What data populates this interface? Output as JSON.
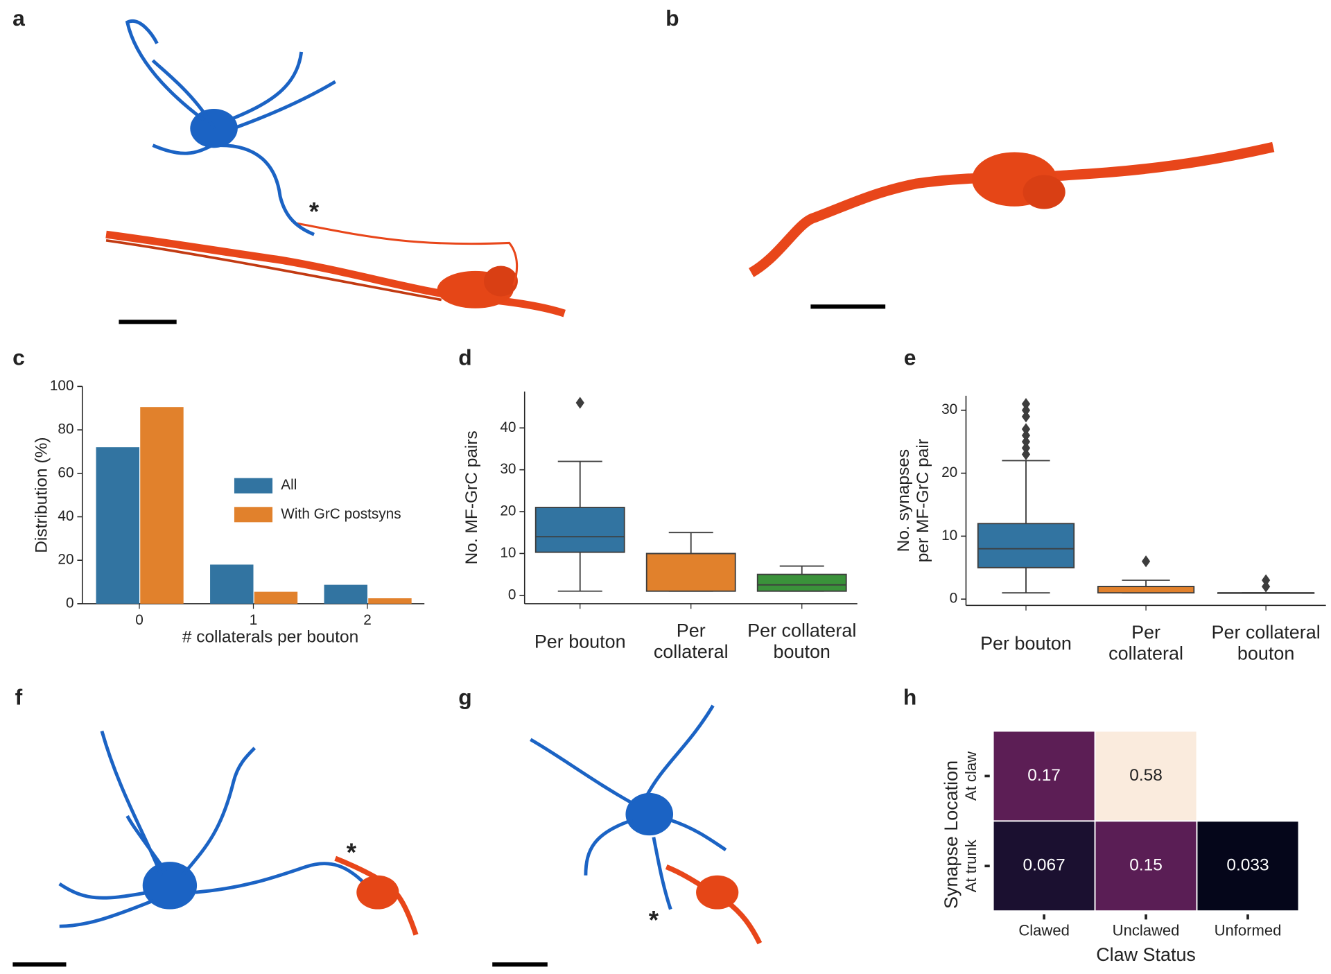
{
  "panel_labels": [
    "a",
    "b",
    "c",
    "d",
    "e",
    "f",
    "g",
    "h"
  ],
  "image_annotations": [
    "*",
    "*",
    "*"
  ],
  "chart_data": [
    {
      "type": "bar",
      "categories": [
        "0",
        "1",
        "2"
      ],
      "series": [
        {
          "name": "All",
          "color": "#3274a1",
          "values": [
            72,
            18,
            8.7
          ]
        },
        {
          "name": "With GrC postsyns",
          "color": "#e1812c",
          "values": [
            90.5,
            5.5,
            2.5
          ]
        }
      ],
      "xlabel": "# collaterals per bouton",
      "ylabel": "Distribution (%)",
      "ylim": [
        0,
        100
      ],
      "yticks": [
        0,
        20,
        40,
        60,
        80,
        100
      ]
    },
    {
      "type": "box",
      "categories": [
        "Per bouton",
        "Per\ncollateral",
        "Per collateral\nbouton"
      ],
      "colors": [
        "#3274a1",
        "#e1812c",
        "#3a923a"
      ],
      "boxes": [
        {
          "whislo": 1,
          "q1": 10.3,
          "med": 14,
          "q3": 21,
          "whishi": 32,
          "fliers": [
            46
          ]
        },
        {
          "whislo": 1,
          "q1": 1,
          "med": 10,
          "q3": 10,
          "whishi": 15,
          "fliers": []
        },
        {
          "whislo": 1,
          "q1": 1,
          "med": 2.5,
          "q3": 5,
          "whishi": 7,
          "fliers": []
        }
      ],
      "ylabel": "No. MF-GrC pairs",
      "ylim": [
        -2,
        48.7
      ],
      "yticks": [
        0,
        10,
        20,
        30,
        40
      ]
    },
    {
      "type": "box",
      "categories": [
        "Per bouton",
        "Per\ncollateral",
        "Per collateral\nbouton"
      ],
      "colors": [
        "#3274a1",
        "#e1812c",
        "#3a923a"
      ],
      "boxes": [
        {
          "whislo": 1,
          "q1": 5,
          "med": 8,
          "q3": 12,
          "whishi": 22,
          "fliers": [
            23,
            24,
            25,
            26,
            27,
            29,
            30,
            31
          ]
        },
        {
          "whislo": 1,
          "q1": 1,
          "med": 2,
          "q3": 2,
          "whishi": 3,
          "fliers": [
            6
          ]
        },
        {
          "whislo": 1,
          "q1": 1,
          "med": 1,
          "q3": 1,
          "whishi": 1,
          "fliers": [
            2,
            3
          ]
        }
      ],
      "ylabel": "No. synapses\nper MF-GrC pair",
      "ylim": [
        -1,
        32.3
      ],
      "yticks": [
        0,
        10,
        20,
        30
      ]
    },
    {
      "type": "heatmap",
      "x_categories": [
        "Clawed",
        "Unclawed",
        "Unformed"
      ],
      "y_categories": [
        "At claw",
        "At trunk"
      ],
      "values": [
        [
          0.17,
          0.58,
          null
        ],
        [
          0.067,
          0.15,
          0.033
        ]
      ],
      "colors": [
        [
          "#5c1e55",
          "#faebdd",
          null
        ],
        [
          "#1b1030",
          "#5a1e55",
          "#05061a"
        ]
      ],
      "text_colors": [
        [
          "#ffffff",
          "#222222",
          null
        ],
        [
          "#ffffff",
          "#ffffff",
          "#ffffff"
        ]
      ],
      "xlabel": "Claw Status",
      "ylabel": "Synapse Location"
    }
  ]
}
